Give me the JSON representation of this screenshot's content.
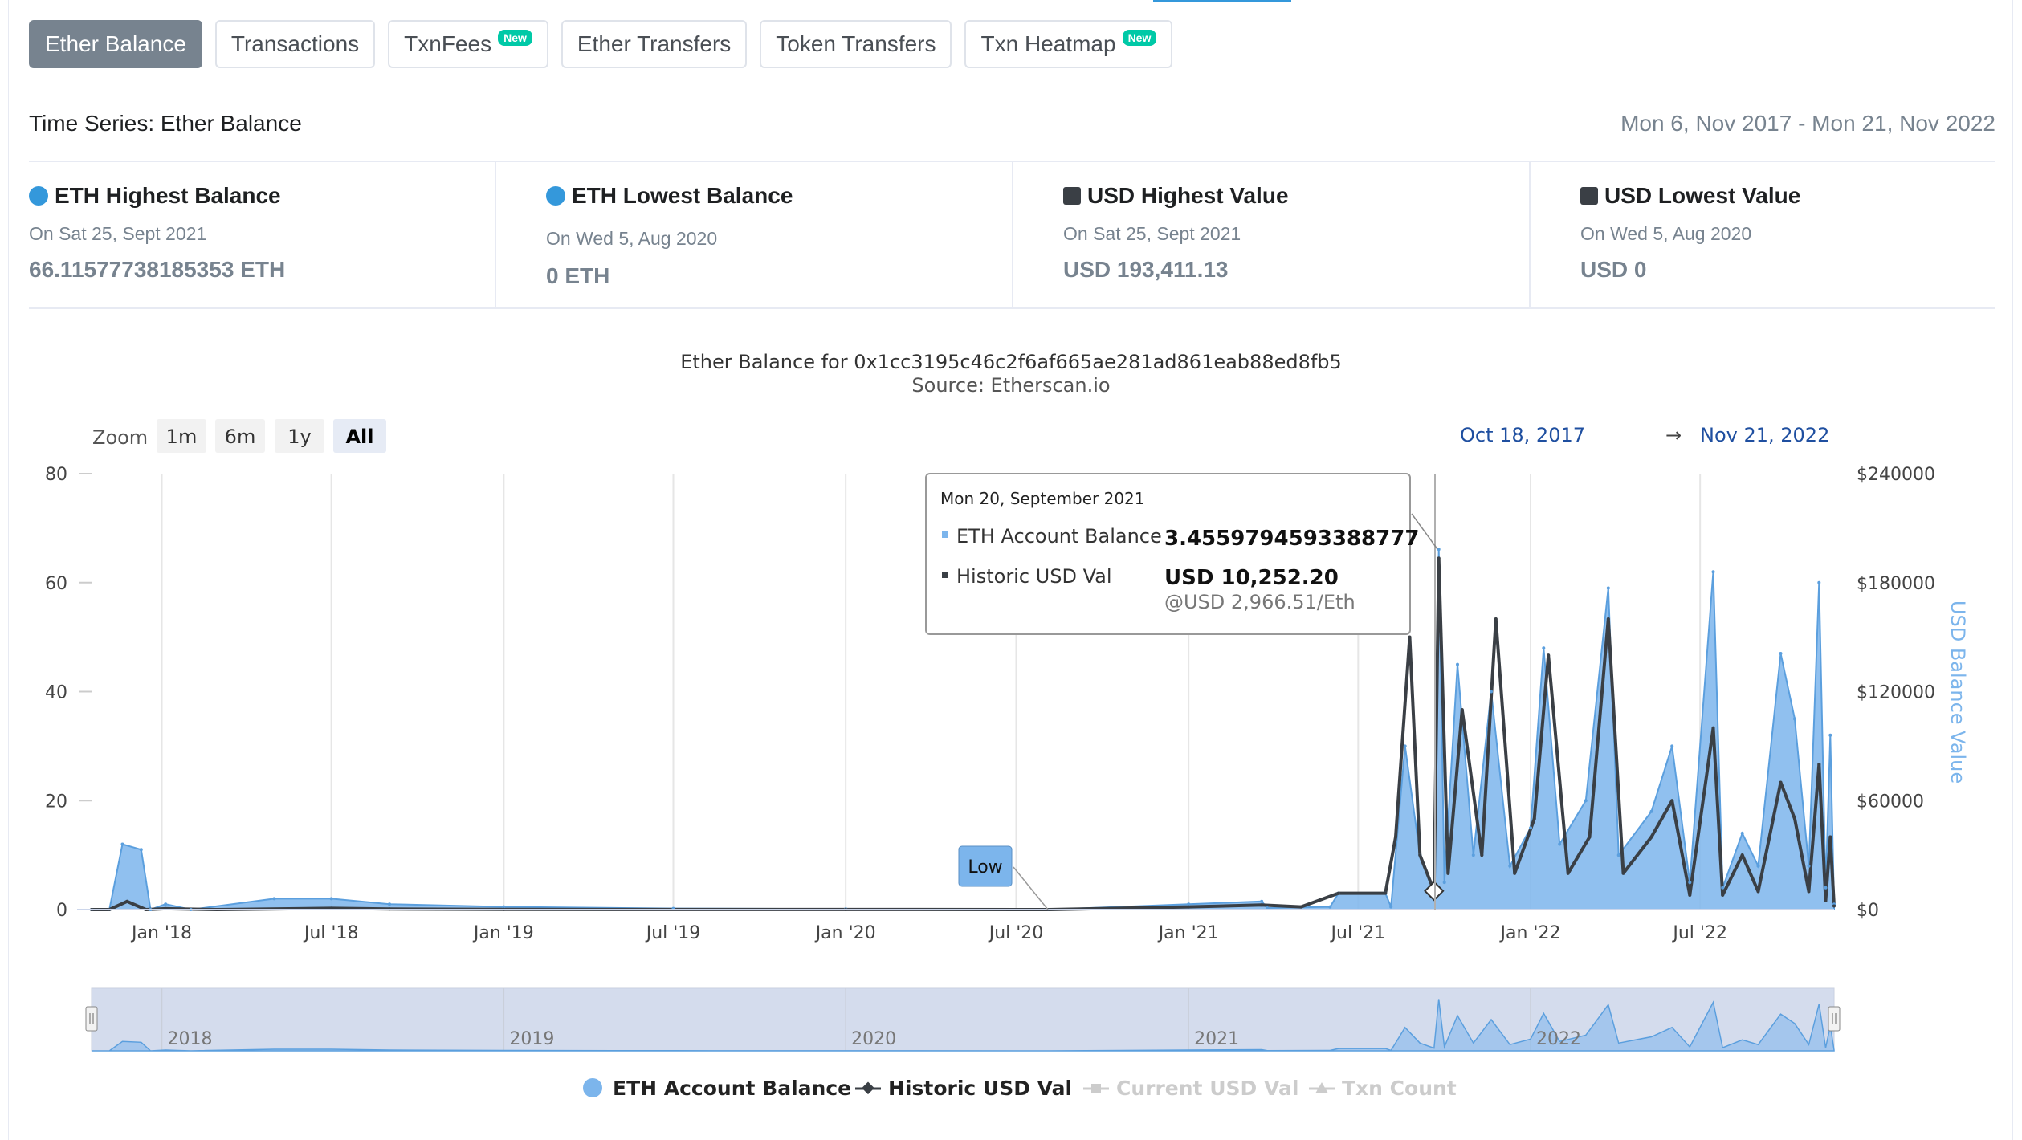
{
  "tabs": [
    {
      "label": "Ether Balance",
      "badge": "",
      "active": true
    },
    {
      "label": "Transactions",
      "badge": "",
      "active": false
    },
    {
      "label": "TxnFees",
      "badge": "New",
      "active": false
    },
    {
      "label": "Ether Transfers",
      "badge": "",
      "active": false
    },
    {
      "label": "Token Transfers",
      "badge": "",
      "active": false
    },
    {
      "label": "Txn Heatmap",
      "badge": "New",
      "active": false
    }
  ],
  "time_series": {
    "title": "Time Series: Ether Balance",
    "range": "Mon 6, Nov 2017 - Mon 21, Nov 2022"
  },
  "stats": [
    {
      "title": "ETH Highest Balance",
      "marker": "dot",
      "sub": "On Sat 25, Sept 2021",
      "value": "66.11577738185353 ETH"
    },
    {
      "title": "ETH Lowest Balance",
      "marker": "dot",
      "sub": "On Wed 5, Aug 2020",
      "value": "0 ETH"
    },
    {
      "title": "USD Highest Value",
      "marker": "square",
      "sub": "On Sat 25, Sept 2021",
      "value": "USD 193,411.13"
    },
    {
      "title": "USD Lowest Value",
      "marker": "square",
      "sub": "On Wed 5, Aug 2020",
      "value": "USD 0"
    }
  ],
  "colors": {
    "eth_balance": "#7cb5ec",
    "usd_val": "#3a3f45",
    "accent": "#3498db",
    "link": "#1f4fa0"
  },
  "chart": {
    "title": "Ether Balance for 0x1cc3195c46c2f6af665ae281ad861eab88ed8fb5",
    "subtitle": "Source: Etherscan.io",
    "zoom_label": "Zoom",
    "zoom_buttons": [
      "1m",
      "6m",
      "1y",
      "All"
    ],
    "zoom_active": "All",
    "range_from": "Oct 18, 2017",
    "range_arrow": "→",
    "range_to": "Nov 21, 2022",
    "right_axis_title": "USD Balance Value",
    "low_label": "Low",
    "tooltip": {
      "date": "Mon 20, September 2021",
      "rows": [
        {
          "label": "ETH Account Balance",
          "value": "3.4559794593388777",
          "sub": ""
        },
        {
          "label": "Historic USD Val",
          "value": "USD 10,252.20",
          "sub": "@USD 2,966.51/Eth"
        }
      ]
    },
    "navigator_labels": [
      "2018",
      "2019",
      "2020",
      "2021",
      "2022"
    ],
    "legend": [
      {
        "label": "ETH Account Balance",
        "enabled": true,
        "symbol": "circle"
      },
      {
        "label": "Historic USD Val",
        "enabled": true,
        "symbol": "line-diamond"
      },
      {
        "label": "Current USD Val",
        "enabled": false,
        "symbol": "line-square"
      },
      {
        "label": "Txn Count",
        "enabled": false,
        "symbol": "line-triangle"
      }
    ]
  },
  "chart_data": {
    "type": "area",
    "x_axis_type": "datetime",
    "x_range": [
      "2017-10-18",
      "2022-11-21"
    ],
    "x_ticks": [
      "Jan '18",
      "Jul '18",
      "Jan '19",
      "Jul '19",
      "Jan '20",
      "Jul '20",
      "Jan '21",
      "Jul '21",
      "Jan '22",
      "Jul '22"
    ],
    "y_left": {
      "label": "",
      "min": 0,
      "max": 80,
      "ticks": [
        0,
        20,
        40,
        60,
        80
      ]
    },
    "y_right": {
      "label": "USD Balance Value",
      "min": 0,
      "max": 240000,
      "ticks": [
        "$0",
        "$60000",
        "$120000",
        "$180000",
        "$240000"
      ]
    },
    "grid": true,
    "legend_position": "bottom",
    "series": [
      {
        "name": "ETH Account Balance",
        "axis": "left",
        "type": "area",
        "points": [
          [
            "2017-10-18",
            0
          ],
          [
            "2017-11-06",
            0
          ],
          [
            "2017-11-20",
            12
          ],
          [
            "2017-12-10",
            11
          ],
          [
            "2017-12-20",
            0
          ],
          [
            "2018-01-05",
            1
          ],
          [
            "2018-02-01",
            0
          ],
          [
            "2018-05-01",
            2
          ],
          [
            "2018-07-01",
            2
          ],
          [
            "2018-09-01",
            1
          ],
          [
            "2019-01-01",
            0.5
          ],
          [
            "2019-07-01",
            0.2
          ],
          [
            "2020-01-01",
            0.1
          ],
          [
            "2020-08-05",
            0
          ],
          [
            "2021-01-01",
            1
          ],
          [
            "2021-03-20",
            1.5
          ],
          [
            "2021-03-26",
            0.3
          ],
          [
            "2021-06-01",
            0.5
          ],
          [
            "2021-06-10",
            3
          ],
          [
            "2021-07-30",
            3
          ],
          [
            "2021-08-05",
            0.5
          ],
          [
            "2021-08-20",
            30
          ],
          [
            "2021-09-05",
            10
          ],
          [
            "2021-09-20",
            3.46
          ],
          [
            "2021-09-25",
            66.12
          ],
          [
            "2021-10-01",
            5
          ],
          [
            "2021-10-15",
            45
          ],
          [
            "2021-11-01",
            10
          ],
          [
            "2021-11-20",
            40
          ],
          [
            "2021-12-10",
            8
          ],
          [
            "2022-01-01",
            15
          ],
          [
            "2022-01-15",
            48
          ],
          [
            "2022-02-01",
            12
          ],
          [
            "2022-03-01",
            20
          ],
          [
            "2022-03-25",
            59
          ],
          [
            "2022-04-05",
            10
          ],
          [
            "2022-05-10",
            18
          ],
          [
            "2022-06-01",
            30
          ],
          [
            "2022-06-20",
            5
          ],
          [
            "2022-07-15",
            62
          ],
          [
            "2022-07-25",
            4
          ],
          [
            "2022-08-15",
            14
          ],
          [
            "2022-09-01",
            8
          ],
          [
            "2022-09-25",
            47
          ],
          [
            "2022-10-10",
            35
          ],
          [
            "2022-10-25",
            8
          ],
          [
            "2022-11-05",
            60
          ],
          [
            "2022-11-12",
            4
          ],
          [
            "2022-11-17",
            32
          ],
          [
            "2022-11-21",
            1
          ]
        ]
      },
      {
        "name": "Historic USD Val",
        "axis": "right",
        "type": "line",
        "points": [
          [
            "2017-10-18",
            0
          ],
          [
            "2017-11-06",
            0
          ],
          [
            "2017-11-25",
            4500
          ],
          [
            "2017-12-15",
            0
          ],
          [
            "2018-01-05",
            500
          ],
          [
            "2018-03-01",
            0
          ],
          [
            "2018-07-01",
            700
          ],
          [
            "2018-09-01",
            300
          ],
          [
            "2019-01-01",
            100
          ],
          [
            "2020-01-01",
            50
          ],
          [
            "2020-08-05",
            0
          ],
          [
            "2021-01-01",
            1500
          ],
          [
            "2021-03-20",
            2500
          ],
          [
            "2021-05-01",
            1500
          ],
          [
            "2021-06-10",
            9000
          ],
          [
            "2021-07-30",
            9000
          ],
          [
            "2021-08-10",
            40000
          ],
          [
            "2021-08-25",
            150000
          ],
          [
            "2021-09-05",
            30000
          ],
          [
            "2021-09-20",
            10252.2
          ],
          [
            "2021-09-25",
            193411.13
          ],
          [
            "2021-10-05",
            20000
          ],
          [
            "2021-10-20",
            110000
          ],
          [
            "2021-11-10",
            30000
          ],
          [
            "2021-11-25",
            160000
          ],
          [
            "2021-12-15",
            20000
          ],
          [
            "2022-01-05",
            50000
          ],
          [
            "2022-01-20",
            140000
          ],
          [
            "2022-02-10",
            20000
          ],
          [
            "2022-03-05",
            40000
          ],
          [
            "2022-03-25",
            160000
          ],
          [
            "2022-04-10",
            20000
          ],
          [
            "2022-05-10",
            40000
          ],
          [
            "2022-06-01",
            60000
          ],
          [
            "2022-06-20",
            8000
          ],
          [
            "2022-07-15",
            100000
          ],
          [
            "2022-07-25",
            8000
          ],
          [
            "2022-08-15",
            30000
          ],
          [
            "2022-09-01",
            10000
          ],
          [
            "2022-09-25",
            70000
          ],
          [
            "2022-10-10",
            50000
          ],
          [
            "2022-10-25",
            10000
          ],
          [
            "2022-11-05",
            80000
          ],
          [
            "2022-11-12",
            5000
          ],
          [
            "2022-11-17",
            40000
          ],
          [
            "2022-11-21",
            2000
          ]
        ]
      }
    ]
  }
}
